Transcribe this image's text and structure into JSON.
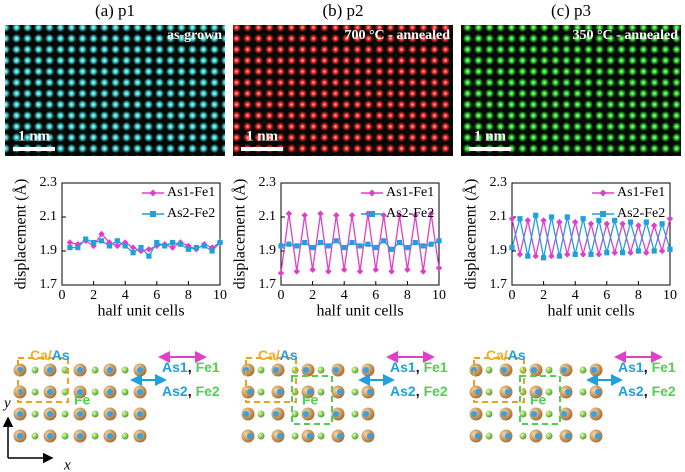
{
  "panels": [
    {
      "label": "(a) p1",
      "annotation": "as-grown",
      "scale_bar": "1 nm",
      "image_color": "#3fe0e0",
      "schematic": {
        "cell_a": "Ca/",
        "cell_b": "As",
        "fe": "Fe",
        "row1": [
          "As1",
          ",",
          "Fe1"
        ],
        "row2": [
          "As2",
          ",",
          "Fe2"
        ]
      }
    },
    {
      "label": "(b) p2",
      "annotation": "700 °C - annealed",
      "scale_bar": "1 nm",
      "image_color": "#ff2a2a",
      "schematic": {
        "cell_a": "Ca/",
        "cell_b": "As",
        "fe": "Fe",
        "row1": [
          "As1",
          ",",
          "Fe1"
        ],
        "row2": [
          "As2",
          ",",
          "Fe2"
        ]
      }
    },
    {
      "label": "(c) p3",
      "annotation": "350 °C - annealed",
      "scale_bar": "1 nm",
      "image_color": "#2ee02e",
      "schematic": {
        "cell_a": "Ca/",
        "cell_b": "As",
        "fe": "Fe",
        "row1": [
          "As1",
          ",",
          "Fe1"
        ],
        "row2": [
          "As2",
          ",",
          "Fe2"
        ]
      }
    }
  ],
  "axes": {
    "x": "x",
    "y": "y"
  },
  "chart_data": [
    {
      "type": "line",
      "xlabel": "half unit cells",
      "ylabel": "displacement (Å)",
      "legend": "upper right",
      "x": [
        0.5,
        1,
        1.5,
        2,
        2.5,
        3,
        3.5,
        4,
        4.5,
        5,
        5.5,
        6,
        6.5,
        7,
        7.5,
        8,
        8.5,
        9,
        9.5,
        10
      ],
      "series": [
        {
          "name": "As1-Fe1",
          "color": "#e040c8",
          "marker": "diamond",
          "values": [
            1.95,
            1.94,
            1.96,
            1.93,
            2.0,
            1.95,
            1.93,
            1.95,
            1.92,
            1.9,
            1.91,
            1.93,
            1.94,
            1.92,
            1.95,
            1.93,
            1.91,
            1.94,
            1.92,
            1.95
          ]
        },
        {
          "name": "As2-Fe2",
          "color": "#20a0dc",
          "marker": "square",
          "values": [
            1.92,
            1.92,
            1.97,
            1.95,
            1.96,
            1.93,
            1.96,
            1.93,
            1.89,
            1.92,
            1.87,
            1.95,
            1.93,
            1.95,
            1.94,
            1.91,
            1.92,
            1.93,
            1.9,
            1.95
          ]
        }
      ],
      "xlim": [
        0,
        10
      ],
      "ylim": [
        1.7,
        2.3
      ],
      "xticks": [
        0,
        2,
        4,
        6,
        8,
        10
      ],
      "yticks": [
        1.7,
        1.9,
        2.1,
        2.3
      ]
    },
    {
      "type": "line",
      "xlabel": "half unit cells",
      "ylabel": "displacement (Å)",
      "legend": "upper right",
      "x": [
        0,
        0.5,
        1,
        1.5,
        2,
        2.5,
        3,
        3.5,
        4,
        4.5,
        5,
        5.5,
        6,
        6.5,
        7,
        7.5,
        8,
        8.5,
        9,
        9.5,
        10
      ],
      "series": [
        {
          "name": "As1-Fe1",
          "color": "#e040c8",
          "marker": "diamond",
          "values": [
            1.77,
            2.12,
            1.78,
            2.11,
            1.79,
            2.12,
            1.78,
            2.11,
            1.79,
            2.11,
            1.78,
            2.12,
            1.79,
            2.11,
            1.78,
            2.11,
            1.79,
            2.11,
            1.78,
            2.12,
            1.8
          ]
        },
        {
          "name": "As2-Fe2",
          "color": "#20a0dc",
          "marker": "square",
          "values": [
            1.93,
            1.94,
            1.93,
            1.95,
            1.92,
            1.95,
            1.93,
            1.96,
            1.92,
            1.95,
            1.93,
            1.94,
            1.92,
            1.96,
            1.91,
            1.95,
            1.92,
            1.95,
            1.93,
            1.94,
            1.96
          ]
        }
      ],
      "xlim": [
        0,
        10
      ],
      "ylim": [
        1.7,
        2.3
      ],
      "xticks": [
        0,
        2,
        4,
        6,
        8,
        10
      ],
      "yticks": [
        1.7,
        1.9,
        2.1,
        2.3
      ]
    },
    {
      "type": "line",
      "xlabel": "half unit cells",
      "ylabel": "displacement (Å)",
      "legend": "upper right",
      "x": [
        0,
        0.5,
        1,
        1.5,
        2,
        2.5,
        3,
        3.5,
        4,
        4.5,
        5,
        5.5,
        6,
        6.5,
        7,
        7.5,
        8,
        8.5,
        9,
        9.5,
        10
      ],
      "series": [
        {
          "name": "As1-Fe1",
          "color": "#e040c8",
          "marker": "diamond",
          "values": [
            2.09,
            1.88,
            2.08,
            1.87,
            2.08,
            1.87,
            2.07,
            1.88,
            2.07,
            1.88,
            2.06,
            1.88,
            2.06,
            1.89,
            2.06,
            1.89,
            2.05,
            1.89,
            2.05,
            1.9,
            2.09
          ]
        },
        {
          "name": "As2-Fe2",
          "color": "#20a0dc",
          "marker": "square",
          "values": [
            1.92,
            2.09,
            1.87,
            2.11,
            1.86,
            2.1,
            1.87,
            2.1,
            1.88,
            2.09,
            1.88,
            2.08,
            1.89,
            2.08,
            1.89,
            2.07,
            1.9,
            2.07,
            1.9,
            2.06,
            1.91
          ]
        }
      ],
      "xlim": [
        0,
        10
      ],
      "ylim": [
        1.7,
        2.3
      ],
      "xticks": [
        0,
        2,
        4,
        6,
        8,
        10
      ],
      "yticks": [
        1.7,
        1.9,
        2.1,
        2.3
      ]
    }
  ]
}
